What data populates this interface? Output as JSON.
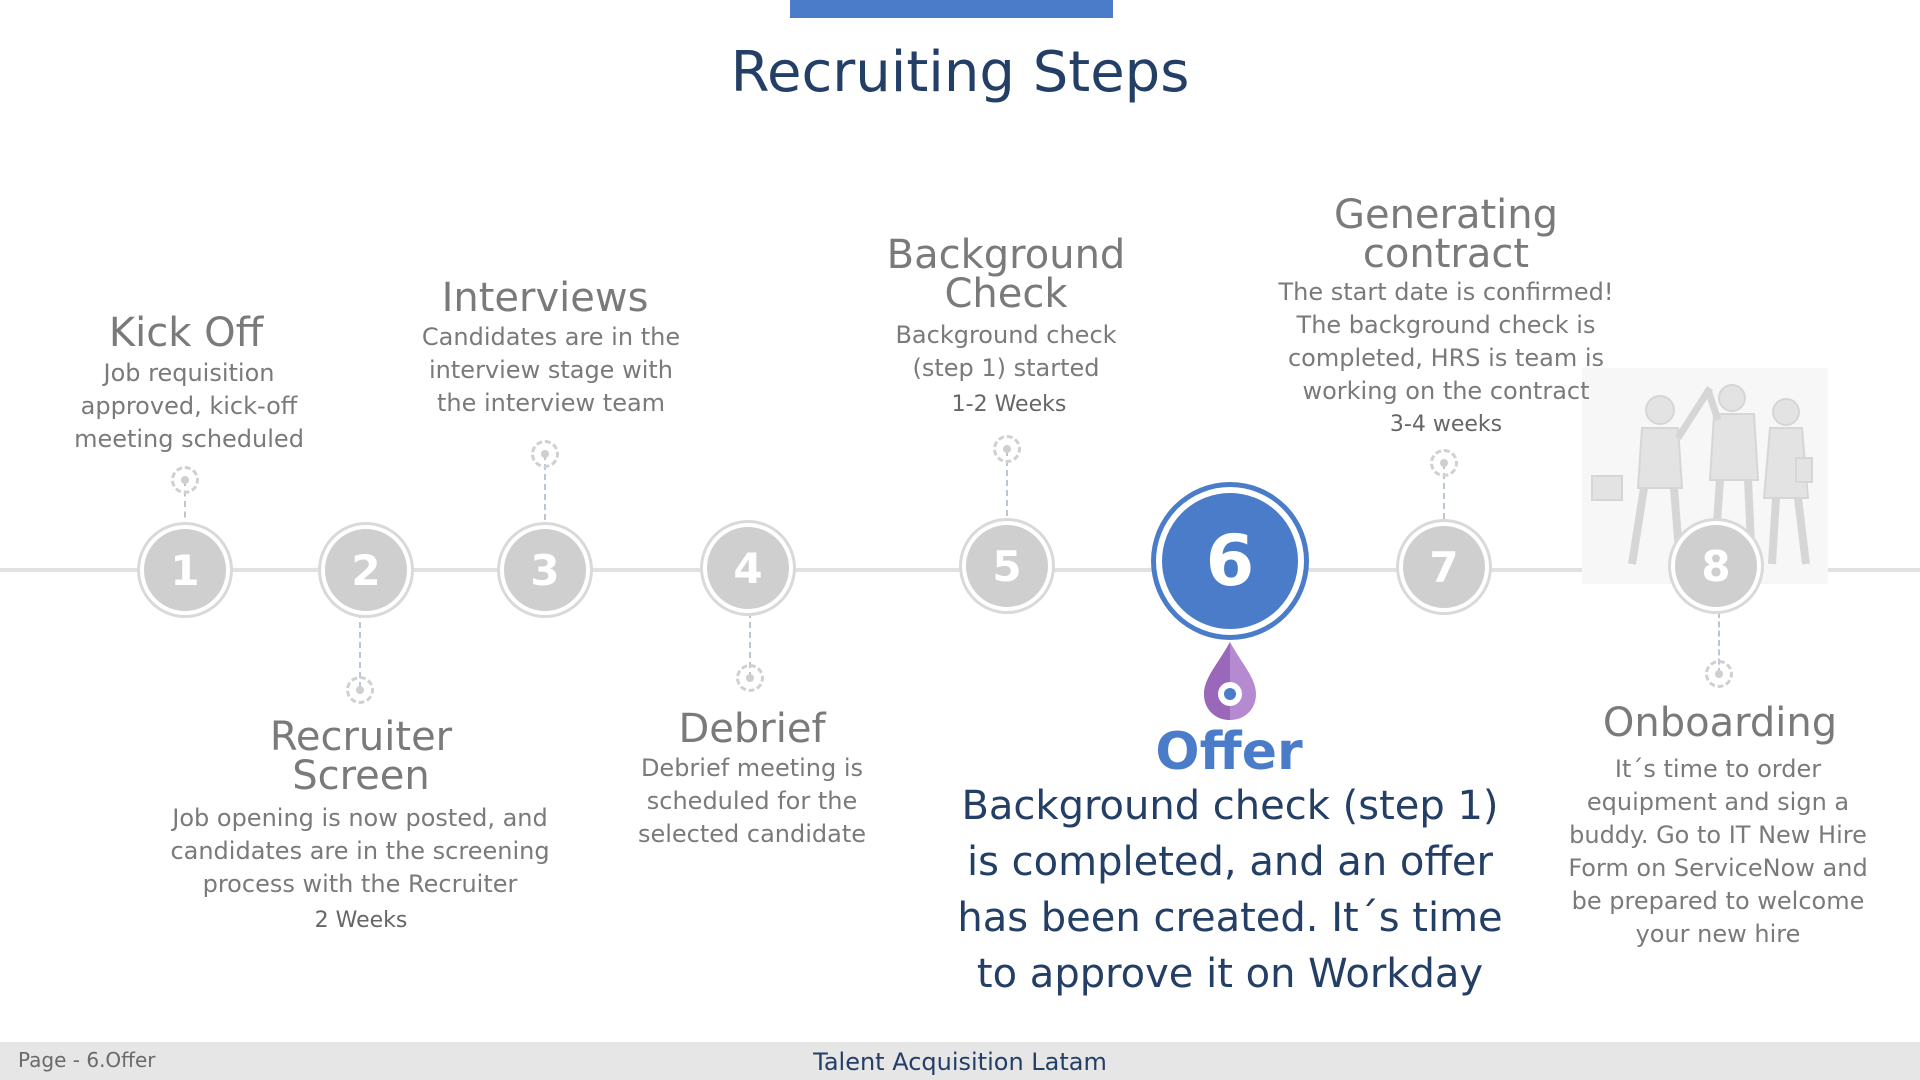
{
  "title": "Recruiting Steps",
  "footer": {
    "page_label": "Page - 6.Offer",
    "center_text": "Talent Acquisition Latam"
  },
  "steps": [
    {
      "number": "1",
      "title_lines": [
        "Kick Off"
      ],
      "desc_lines": [
        "Job requisition",
        "approved, kick-off",
        "meeting scheduled"
      ],
      "duration": ""
    },
    {
      "number": "2",
      "title_lines": [
        "Recruiter",
        "Screen"
      ],
      "desc_lines": [
        "Job opening is now posted, and",
        "candidates are in the screening",
        "process with the Recruiter"
      ],
      "duration": "2 Weeks"
    },
    {
      "number": "3",
      "title_lines": [
        "Interviews"
      ],
      "desc_lines": [
        "Candidates are in the",
        "interview stage with",
        "the interview team"
      ],
      "duration": ""
    },
    {
      "number": "4",
      "title_lines": [
        "Debrief"
      ],
      "desc_lines": [
        "Debrief meeting is",
        "scheduled for the",
        "selected candidate"
      ],
      "duration": ""
    },
    {
      "number": "5",
      "title_lines": [
        "Background",
        "Check"
      ],
      "desc_lines": [
        "Background check",
        "(step 1) started"
      ],
      "duration": "1-2 Weeks"
    },
    {
      "number": "6",
      "title_lines": [
        "Offer"
      ],
      "desc_lines": [
        "Background check (step 1)",
        "is completed, and an offer",
        "has been created. It´s time",
        "to approve it on Workday"
      ],
      "duration": ""
    },
    {
      "number": "7",
      "title_lines": [
        "Generating",
        "contract"
      ],
      "desc_lines": [
        "The start date is confirmed!",
        "The background check is",
        "completed, HRS is team is",
        "working on the contract"
      ],
      "duration": "3-4 weeks"
    },
    {
      "number": "8",
      "title_lines": [
        "Onboarding"
      ],
      "desc_lines": [
        "It´s time to order",
        "equipment and sign a",
        "buddy. Go to IT New Hire",
        "Form on ServiceNow and",
        "be prepared to welcome",
        "your new hire"
      ],
      "duration": ""
    }
  ],
  "active_step": "6",
  "colors": {
    "accent": "#4a7cc9",
    "title": "#243f66",
    "inactive_circle": "#cfcfcf",
    "marker": "#a87cc4"
  },
  "icons": {
    "active_marker": "drop-pin-icon",
    "connector_end": "dashed-target-icon",
    "illustration": "team-high-five-illustration"
  }
}
